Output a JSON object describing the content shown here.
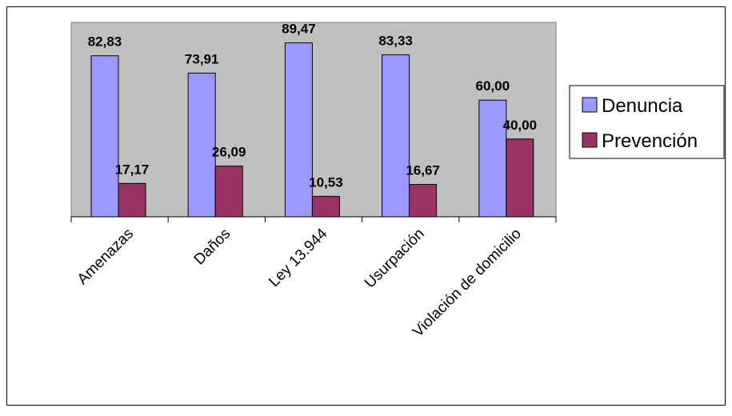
{
  "chart_data": {
    "type": "bar",
    "title": "",
    "xlabel": "",
    "ylabel": "",
    "ylim": [
      0,
      100
    ],
    "grid": false,
    "legend_position": "right",
    "categories": [
      "Amenazas",
      "Daños",
      "Ley 13.944",
      "Usurpación",
      "Violación de domicilio"
    ],
    "series": [
      {
        "name": "Denuncia",
        "color": "#9999ff",
        "values": [
          82.83,
          73.91,
          89.47,
          83.33,
          60.0
        ],
        "labels": [
          "82,83",
          "73,91",
          "89,47",
          "83,33",
          "60,00"
        ]
      },
      {
        "name": "Prevención",
        "color": "#993366",
        "values": [
          17.17,
          26.09,
          10.53,
          16.67,
          40.0
        ],
        "labels": [
          "17,17",
          "26,09",
          "10,53",
          "16,67",
          "40,00"
        ]
      }
    ],
    "plot_background": "#c0c0c0"
  }
}
